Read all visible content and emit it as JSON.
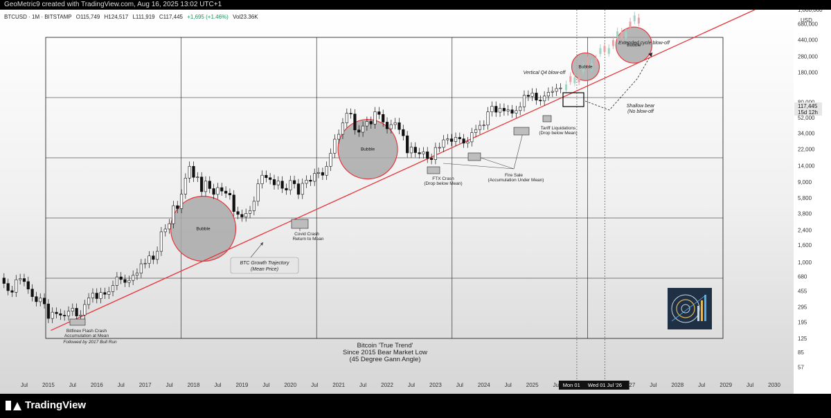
{
  "header": {
    "caption": "GeoMetric9 created with TradingView.com, Aug 16, 2025 13:02 UTC+1"
  },
  "legend": {
    "symbol": "BTCUSD · 1M · BITSTAMP",
    "open": "O115,749",
    "high": "H124,517",
    "low": "L111,919",
    "close": "C117,445",
    "change": "+1,695 (+1.46%)",
    "volume": "Vol23.36K"
  },
  "price_axis": {
    "currency": "USD",
    "current_price": "117,445",
    "countdown": "15d 12h"
  },
  "footer": {
    "brand": "TradingView"
  },
  "colors": {
    "trend_line": "#e8343a",
    "bubble_fill": "#a9a9a9",
    "candle_up": "#ffffff",
    "candle_down": "#111111"
  },
  "chart_data": {
    "type": "candlestick",
    "scale": "log",
    "ylim": [
      40,
      1000000
    ],
    "y_ticks": [
      {
        "value": 57,
        "label": "57"
      },
      {
        "value": 85,
        "label": "85"
      },
      {
        "value": 125,
        "label": "125"
      },
      {
        "value": 195,
        "label": "195"
      },
      {
        "value": 295,
        "label": "295"
      },
      {
        "value": 455,
        "label": "455"
      },
      {
        "value": 680,
        "label": "680"
      },
      {
        "value": 1000,
        "label": "1,000"
      },
      {
        "value": 1600,
        "label": "1,600"
      },
      {
        "value": 2400,
        "label": "2,400"
      },
      {
        "value": 3800,
        "label": "3,800"
      },
      {
        "value": 5800,
        "label": "5,800"
      },
      {
        "value": 9000,
        "label": "9,000"
      },
      {
        "value": 14000,
        "label": "14,000"
      },
      {
        "value": 22000,
        "label": "22,000"
      },
      {
        "value": 34000,
        "label": "34,000"
      },
      {
        "value": 52000,
        "label": "52,000"
      },
      {
        "value": 80000,
        "label": "80,000"
      },
      {
        "value": 180000,
        "label": "180,000"
      },
      {
        "value": 280000,
        "label": "280,000"
      },
      {
        "value": 440000,
        "label": "440,000"
      },
      {
        "value": 680000,
        "label": "680,000"
      },
      {
        "value": 1000000,
        "label": "1,000,000"
      }
    ],
    "x_ticks": [
      "Jul",
      "2015",
      "Jul",
      "2016",
      "Jul",
      "2017",
      "Jul",
      "2018",
      "Jul",
      "2019",
      "Jul",
      "2020",
      "Jul",
      "2021",
      "Jul",
      "2022",
      "Jul",
      "2023",
      "Jul",
      "2024",
      "Jul",
      "2025",
      "Jul",
      "",
      "",
      "2027",
      "Jul",
      "2028",
      "Jul",
      "2029",
      "Jul",
      "2030"
    ],
    "x_tick_dates": [
      2014.5,
      2015,
      2015.5,
      2016,
      2016.5,
      2017,
      2017.5,
      2018,
      2018.5,
      2019,
      2019.5,
      2020,
      2020.5,
      2021,
      2021.5,
      2022,
      2022.5,
      2023,
      2023.5,
      2024,
      2024.5,
      2025,
      2025.5,
      2026,
      2026.5,
      2027,
      2027.5,
      2028,
      2028.5,
      2029,
      2029.5,
      2030
    ],
    "x_range": [
      2014.0,
      2030.4
    ],
    "date_markers": [
      {
        "date": 2025.92,
        "label": "Mon 01 Dec"
      },
      {
        "date": 2026.5,
        "label": "Wed 01 Jul '26"
      }
    ],
    "monthly_closes": [
      [
        2014.0,
        650
      ],
      [
        2014.083,
        560
      ],
      [
        2014.167,
        460
      ],
      [
        2014.25,
        440
      ],
      [
        2014.333,
        620
      ],
      [
        2014.417,
        640
      ],
      [
        2014.5,
        590
      ],
      [
        2014.583,
        480
      ],
      [
        2014.667,
        390
      ],
      [
        2014.75,
        340
      ],
      [
        2014.833,
        375
      ],
      [
        2014.917,
        320
      ],
      [
        2015.0,
        215
      ],
      [
        2015.083,
        255
      ],
      [
        2015.167,
        245
      ],
      [
        2015.25,
        235
      ],
      [
        2015.333,
        230
      ],
      [
        2015.417,
        262
      ],
      [
        2015.5,
        284
      ],
      [
        2015.583,
        230
      ],
      [
        2015.667,
        236
      ],
      [
        2015.75,
        315
      ],
      [
        2015.833,
        377
      ],
      [
        2015.917,
        430
      ],
      [
        2016.0,
        370
      ],
      [
        2016.083,
        437
      ],
      [
        2016.167,
        416
      ],
      [
        2016.25,
        448
      ],
      [
        2016.333,
        530
      ],
      [
        2016.417,
        670
      ],
      [
        2016.5,
        624
      ],
      [
        2016.583,
        575
      ],
      [
        2016.667,
        608
      ],
      [
        2016.75,
        700
      ],
      [
        2016.833,
        742
      ],
      [
        2016.917,
        960
      ],
      [
        2017.0,
        970
      ],
      [
        2017.083,
        1190
      ],
      [
        2017.167,
        1080
      ],
      [
        2017.25,
        1350
      ],
      [
        2017.333,
        2300
      ],
      [
        2017.417,
        2480
      ],
      [
        2017.5,
        2870
      ],
      [
        2017.583,
        4700
      ],
      [
        2017.667,
        4340
      ],
      [
        2017.75,
        6450
      ],
      [
        2017.833,
        10000
      ],
      [
        2017.917,
        13800
      ],
      [
        2018.0,
        10200
      ],
      [
        2018.083,
        10300
      ],
      [
        2018.167,
        6900
      ],
      [
        2018.25,
        9200
      ],
      [
        2018.333,
        7500
      ],
      [
        2018.417,
        6400
      ],
      [
        2018.5,
        7700
      ],
      [
        2018.583,
        7000
      ],
      [
        2018.667,
        6600
      ],
      [
        2018.75,
        6300
      ],
      [
        2018.833,
        4000
      ],
      [
        2018.917,
        3700
      ],
      [
        2019.0,
        3450
      ],
      [
        2019.083,
        3800
      ],
      [
        2019.167,
        4100
      ],
      [
        2019.25,
        5300
      ],
      [
        2019.333,
        8550
      ],
      [
        2019.417,
        10800
      ],
      [
        2019.5,
        10100
      ],
      [
        2019.583,
        9600
      ],
      [
        2019.667,
        8300
      ],
      [
        2019.75,
        9200
      ],
      [
        2019.833,
        7550
      ],
      [
        2019.917,
        7200
      ],
      [
        2020.0,
        9350
      ],
      [
        2020.083,
        8550
      ],
      [
        2020.167,
        6400
      ],
      [
        2020.25,
        8650
      ],
      [
        2020.333,
        9450
      ],
      [
        2020.417,
        9150
      ],
      [
        2020.5,
        11350
      ],
      [
        2020.583,
        11650
      ],
      [
        2020.667,
        10800
      ],
      [
        2020.75,
        13800
      ],
      [
        2020.833,
        19700
      ],
      [
        2020.917,
        28990
      ],
      [
        2021.0,
        33100
      ],
      [
        2021.083,
        45200
      ],
      [
        2021.167,
        58800
      ],
      [
        2021.25,
        57700
      ],
      [
        2021.333,
        37300
      ],
      [
        2021.417,
        35050
      ],
      [
        2021.5,
        41500
      ],
      [
        2021.583,
        47100
      ],
      [
        2021.667,
        43800
      ],
      [
        2021.75,
        61300
      ],
      [
        2021.833,
        57000
      ],
      [
        2021.917,
        46200
      ],
      [
        2022.0,
        38500
      ],
      [
        2022.083,
        43200
      ],
      [
        2022.167,
        45500
      ],
      [
        2022.25,
        37700
      ],
      [
        2022.333,
        31800
      ],
      [
        2022.417,
        19900
      ],
      [
        2022.5,
        23300
      ],
      [
        2022.583,
        20050
      ],
      [
        2022.667,
        19400
      ],
      [
        2022.75,
        20500
      ],
      [
        2022.833,
        17150
      ],
      [
        2022.917,
        16550
      ],
      [
        2023.0,
        23100
      ],
      [
        2023.083,
        23150
      ],
      [
        2023.167,
        28450
      ],
      [
        2023.25,
        29250
      ],
      [
        2023.333,
        27200
      ],
      [
        2023.417,
        30450
      ],
      [
        2023.5,
        29250
      ],
      [
        2023.583,
        25950
      ],
      [
        2023.667,
        26950
      ],
      [
        2023.75,
        34650
      ],
      [
        2023.833,
        37700
      ],
      [
        2023.917,
        42300
      ],
      [
        2024.0,
        42600
      ],
      [
        2024.083,
        61200
      ],
      [
        2024.167,
        71300
      ],
      [
        2024.25,
        60600
      ],
      [
        2024.333,
        67500
      ],
      [
        2024.417,
        62700
      ],
      [
        2024.5,
        64600
      ],
      [
        2024.583,
        58900
      ],
      [
        2024.667,
        63300
      ],
      [
        2024.75,
        70200
      ],
      [
        2024.833,
        96400
      ],
      [
        2024.917,
        93400
      ],
      [
        2025.0,
        102400
      ],
      [
        2025.083,
        84300
      ],
      [
        2025.167,
        82500
      ],
      [
        2025.25,
        94200
      ],
      [
        2025.333,
        104600
      ],
      [
        2025.417,
        107100
      ],
      [
        2025.5,
        115700
      ],
      [
        2025.583,
        117445
      ]
    ],
    "trend_line": {
      "start": [
        2015.05,
        155
      ],
      "end": [
        2029.6,
        1000000
      ]
    },
    "bubbles": [
      {
        "date": 2018.2,
        "price": 2500,
        "label": "Bubble"
      },
      {
        "date": 2021.6,
        "price": 22000,
        "label": "Bubble"
      },
      {
        "date": 2026.1,
        "price": 210000,
        "label": "Bubble"
      },
      {
        "date": 2027.1,
        "price": 380000,
        "label": "Bubble"
      }
    ],
    "projection_bars": {
      "start": [
        2025.7,
        120000
      ],
      "end": [
        2027.2,
        800000
      ]
    },
    "annotations": {
      "trend_label_1": "BTC Growth Trajectory",
      "trend_label_2": "(Mean Price)",
      "covid_1": "Covid Crash",
      "covid_2": "Return to Mean",
      "ftx_1": "FTX Crash",
      "ftx_2": "(Drop below Mean)",
      "fire_1": "Fire Sale",
      "fire_2": "(Accumulation Under Mean)",
      "tariff_1": "Tariff Liquidations",
      "tariff_2": "(Drop below Mean)",
      "bitfinex_1": "Bitfinex Flash Crash",
      "bitfinex_2": "Accumulation at Mean",
      "bitfinex_3": "Followed by 2017 Bull Run",
      "vertical_q4": "Vertical Q4 blow-off",
      "extended": "Extended cycle blow-off",
      "shallow_1": "Shallow bear",
      "shallow_2": "(No blow-off",
      "title_1": "Bitcoin 'True Trend'",
      "title_2": "Since 2015 Bear Market Low",
      "title_3": "(45 Degree Gann Angle)"
    }
  }
}
